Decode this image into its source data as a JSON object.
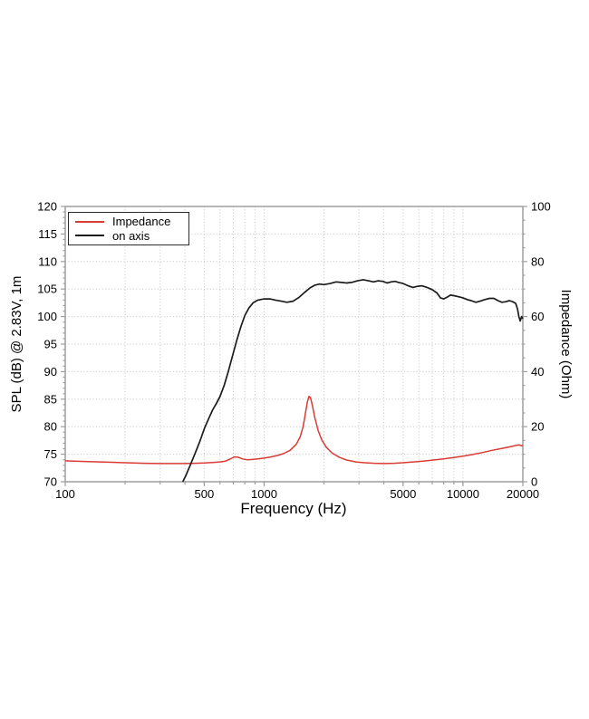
{
  "colors": {
    "background": "#ffffff",
    "frame": "#9e9e9e",
    "grid": "#c4c4c4",
    "text": "#000000",
    "impedance_line": "#d93b35",
    "on_axis_line": "#1c1c1c"
  },
  "chart_data": {
    "type": "line",
    "x_axis": {
      "label": "Frequency (Hz)",
      "scale": "log",
      "min": 100,
      "max": 20000,
      "major_ticks": [
        100,
        500,
        1000,
        5000,
        10000,
        20000
      ],
      "minor_ticks": [
        200,
        300,
        400,
        500,
        600,
        700,
        800,
        900,
        1000,
        2000,
        3000,
        4000,
        5000,
        6000,
        7000,
        8000,
        9000,
        10000
      ]
    },
    "y_axis_left": {
      "label": "SPL (dB) @ 2.83V, 1m",
      "min": 70,
      "max": 120,
      "major_step": 5,
      "minor_step": 1,
      "major_ticks": [
        70,
        75,
        80,
        85,
        90,
        95,
        100,
        105,
        110,
        115,
        120
      ]
    },
    "y_axis_right": {
      "label": "Impedance (Ohm)",
      "min": 0,
      "max": 100,
      "major_step": 20,
      "minor_step": 5,
      "major_ticks": [
        0,
        20,
        40,
        60,
        80,
        100
      ]
    },
    "grid": true,
    "legend": {
      "position": "top-left",
      "items": [
        {
          "label": "Impedance",
          "series": "impedance"
        },
        {
          "label": "on axis",
          "series": "on_axis"
        }
      ]
    },
    "series": [
      {
        "id": "impedance",
        "name": "Impedance",
        "axis": "right",
        "unit": "Ohm",
        "color": "#d93b35",
        "points": [
          [
            100,
            7.6
          ],
          [
            120,
            7.4
          ],
          [
            150,
            7.2
          ],
          [
            200,
            6.9
          ],
          [
            250,
            6.7
          ],
          [
            300,
            6.6
          ],
          [
            350,
            6.6
          ],
          [
            400,
            6.6
          ],
          [
            450,
            6.7
          ],
          [
            500,
            6.8
          ],
          [
            550,
            7.0
          ],
          [
            600,
            7.2
          ],
          [
            640,
            7.5
          ],
          [
            680,
            8.4
          ],
          [
            710,
            9.0
          ],
          [
            740,
            8.9
          ],
          [
            780,
            8.3
          ],
          [
            820,
            8.0
          ],
          [
            870,
            8.1
          ],
          [
            930,
            8.3
          ],
          [
            1000,
            8.6
          ],
          [
            1080,
            9.0
          ],
          [
            1160,
            9.5
          ],
          [
            1250,
            10.2
          ],
          [
            1350,
            11.4
          ],
          [
            1450,
            13.6
          ],
          [
            1520,
            16.4
          ],
          [
            1570,
            20.0
          ],
          [
            1610,
            24.6
          ],
          [
            1650,
            29.0
          ],
          [
            1680,
            31.0
          ],
          [
            1710,
            30.6
          ],
          [
            1750,
            27.6
          ],
          [
            1800,
            23.2
          ],
          [
            1870,
            18.6
          ],
          [
            1950,
            15.2
          ],
          [
            2050,
            12.6
          ],
          [
            2200,
            10.4
          ],
          [
            2400,
            8.8
          ],
          [
            2600,
            7.9
          ],
          [
            2900,
            7.2
          ],
          [
            3200,
            6.9
          ],
          [
            3600,
            6.7
          ],
          [
            4000,
            6.6
          ],
          [
            4500,
            6.7
          ],
          [
            5000,
            6.9
          ],
          [
            5600,
            7.2
          ],
          [
            6300,
            7.5
          ],
          [
            7100,
            7.9
          ],
          [
            8000,
            8.3
          ],
          [
            9000,
            8.8
          ],
          [
            10000,
            9.3
          ],
          [
            11200,
            9.9
          ],
          [
            12500,
            10.6
          ],
          [
            14000,
            11.4
          ],
          [
            16000,
            12.2
          ],
          [
            17500,
            12.8
          ],
          [
            18500,
            13.2
          ],
          [
            19200,
            13.4
          ],
          [
            19600,
            13.1
          ],
          [
            20000,
            13.2
          ]
        ]
      },
      {
        "id": "on_axis",
        "name": "on axis",
        "axis": "left",
        "unit": "dB SPL",
        "color": "#1c1c1c",
        "points": [
          [
            390,
            70.0
          ],
          [
            405,
            71.2
          ],
          [
            425,
            73.0
          ],
          [
            450,
            75.2
          ],
          [
            475,
            77.3
          ],
          [
            500,
            79.6
          ],
          [
            525,
            81.4
          ],
          [
            550,
            83.0
          ],
          [
            575,
            84.2
          ],
          [
            600,
            85.5
          ],
          [
            630,
            87.5
          ],
          [
            660,
            90.0
          ],
          [
            695,
            93.0
          ],
          [
            730,
            95.8
          ],
          [
            765,
            98.2
          ],
          [
            800,
            100.2
          ],
          [
            840,
            101.6
          ],
          [
            880,
            102.5
          ],
          [
            930,
            103.0
          ],
          [
            1000,
            103.2
          ],
          [
            1070,
            103.2
          ],
          [
            1140,
            103.0
          ],
          [
            1220,
            102.8
          ],
          [
            1300,
            102.6
          ],
          [
            1400,
            102.8
          ],
          [
            1500,
            103.5
          ],
          [
            1600,
            104.4
          ],
          [
            1700,
            105.2
          ],
          [
            1800,
            105.7
          ],
          [
            1900,
            105.9
          ],
          [
            2000,
            105.8
          ],
          [
            2150,
            106.0
          ],
          [
            2300,
            106.3
          ],
          [
            2450,
            106.2
          ],
          [
            2600,
            106.1
          ],
          [
            2750,
            106.2
          ],
          [
            2950,
            106.5
          ],
          [
            3150,
            106.7
          ],
          [
            3350,
            106.5
          ],
          [
            3550,
            106.3
          ],
          [
            3750,
            106.5
          ],
          [
            3950,
            106.4
          ],
          [
            4150,
            106.1
          ],
          [
            4350,
            106.3
          ],
          [
            4550,
            106.4
          ],
          [
            4750,
            106.2
          ],
          [
            5000,
            106.0
          ],
          [
            5300,
            105.6
          ],
          [
            5600,
            105.3
          ],
          [
            5900,
            105.5
          ],
          [
            6200,
            105.6
          ],
          [
            6600,
            105.3
          ],
          [
            7000,
            104.9
          ],
          [
            7400,
            104.3
          ],
          [
            7700,
            103.4
          ],
          [
            8000,
            103.2
          ],
          [
            8300,
            103.5
          ],
          [
            8650,
            103.9
          ],
          [
            9000,
            103.8
          ],
          [
            9500,
            103.6
          ],
          [
            10000,
            103.4
          ],
          [
            10500,
            103.1
          ],
          [
            11000,
            102.9
          ],
          [
            11600,
            102.6
          ],
          [
            12200,
            102.8
          ],
          [
            12900,
            103.1
          ],
          [
            13600,
            103.3
          ],
          [
            14300,
            103.3
          ],
          [
            15000,
            102.9
          ],
          [
            15700,
            102.6
          ],
          [
            16400,
            102.7
          ],
          [
            17100,
            102.9
          ],
          [
            17800,
            102.7
          ],
          [
            18400,
            102.4
          ],
          [
            18800,
            101.4
          ],
          [
            19100,
            100.0
          ],
          [
            19400,
            99.2
          ],
          [
            19700,
            100.0
          ],
          [
            20000,
            99.6
          ]
        ]
      }
    ]
  }
}
